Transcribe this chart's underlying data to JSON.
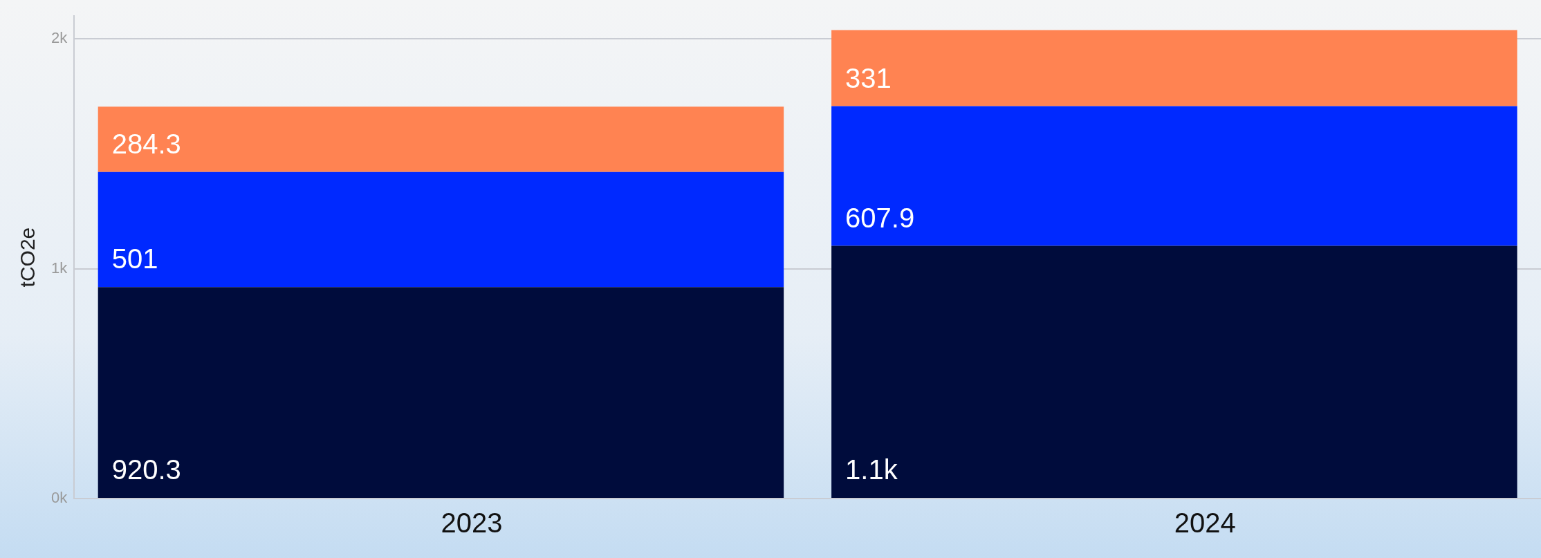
{
  "chart_data": {
    "type": "bar",
    "stacked": true,
    "ylabel": "tCO2e",
    "categories": [
      "2023",
      "2024"
    ],
    "series": [
      {
        "color": "#000c3c",
        "values": [
          920.3,
          1100
        ],
        "value_labels": [
          "920.3",
          "1.1k"
        ]
      },
      {
        "color": "#0029ff",
        "values": [
          501,
          607.9
        ],
        "value_labels": [
          "501",
          "607.9"
        ]
      },
      {
        "color": "#ff8352",
        "values": [
          284.3,
          331
        ],
        "value_labels": [
          "284.3",
          "331"
        ]
      }
    ],
    "ylim": [
      0,
      2100
    ],
    "yticks": [
      {
        "value": 0,
        "label": "0k"
      },
      {
        "value": 1000,
        "label": "1k"
      },
      {
        "value": 2000,
        "label": "2k"
      }
    ],
    "grid": "y",
    "legend": false
  }
}
